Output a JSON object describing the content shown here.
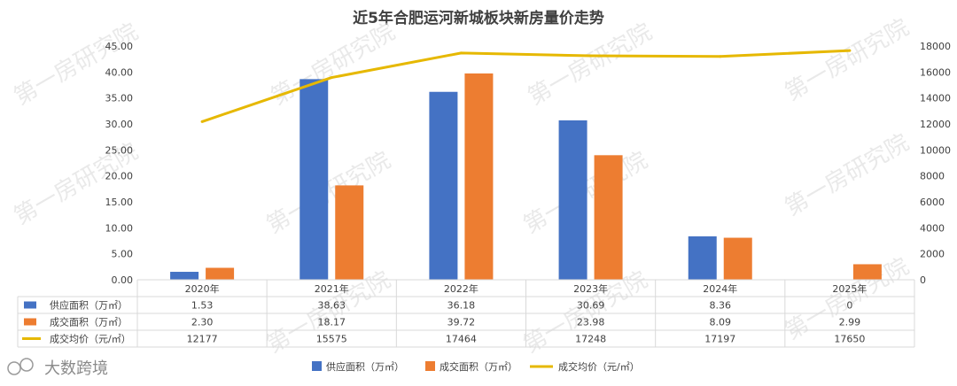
{
  "chart_data": {
    "type": "bar",
    "title": "近5年合肥运河新城板块新房量价走势",
    "categories": [
      "2020年",
      "2021年",
      "2022年",
      "2023年",
      "2024年",
      "2025年"
    ],
    "series": [
      {
        "name": "供应面积（万㎡）",
        "kind": "bar",
        "axis": "left",
        "color": "#4472c4",
        "values": [
          1.53,
          38.63,
          36.18,
          30.69,
          8.36,
          0
        ],
        "labels": [
          "1.53",
          "38.63",
          "36.18",
          "30.69",
          "8.36",
          "0"
        ]
      },
      {
        "name": "成交面积（万㎡）",
        "kind": "bar",
        "axis": "left",
        "color": "#ed7d31",
        "values": [
          2.3,
          18.17,
          39.72,
          23.98,
          8.09,
          2.99
        ],
        "labels": [
          "2.30",
          "18.17",
          "39.72",
          "23.98",
          "8.09",
          "2.99"
        ]
      },
      {
        "name": "成交均价（元/㎡）",
        "kind": "line",
        "axis": "right",
        "color": "#e6b800",
        "values": [
          12177,
          15575,
          17464,
          17248,
          17197,
          17650
        ],
        "labels": [
          "12177",
          "15575",
          "17464",
          "17248",
          "17197",
          "17650"
        ]
      }
    ],
    "y_left": {
      "min": 0,
      "max": 45,
      "step": 5,
      "ticks": [
        "0.00",
        "5.00",
        "10.00",
        "15.00",
        "20.00",
        "25.00",
        "30.00",
        "35.00",
        "40.00",
        "45.00"
      ]
    },
    "y_right": {
      "min": 0,
      "max": 18000,
      "step": 2000,
      "ticks": [
        "0",
        "2000",
        "4000",
        "6000",
        "8000",
        "10000",
        "12000",
        "14000",
        "16000",
        "18000"
      ]
    },
    "grid": false,
    "legend": "bottom",
    "data_table": true
  },
  "watermark": {
    "text": "第一房研究院"
  },
  "brand": {
    "text": "大数跨境"
  }
}
